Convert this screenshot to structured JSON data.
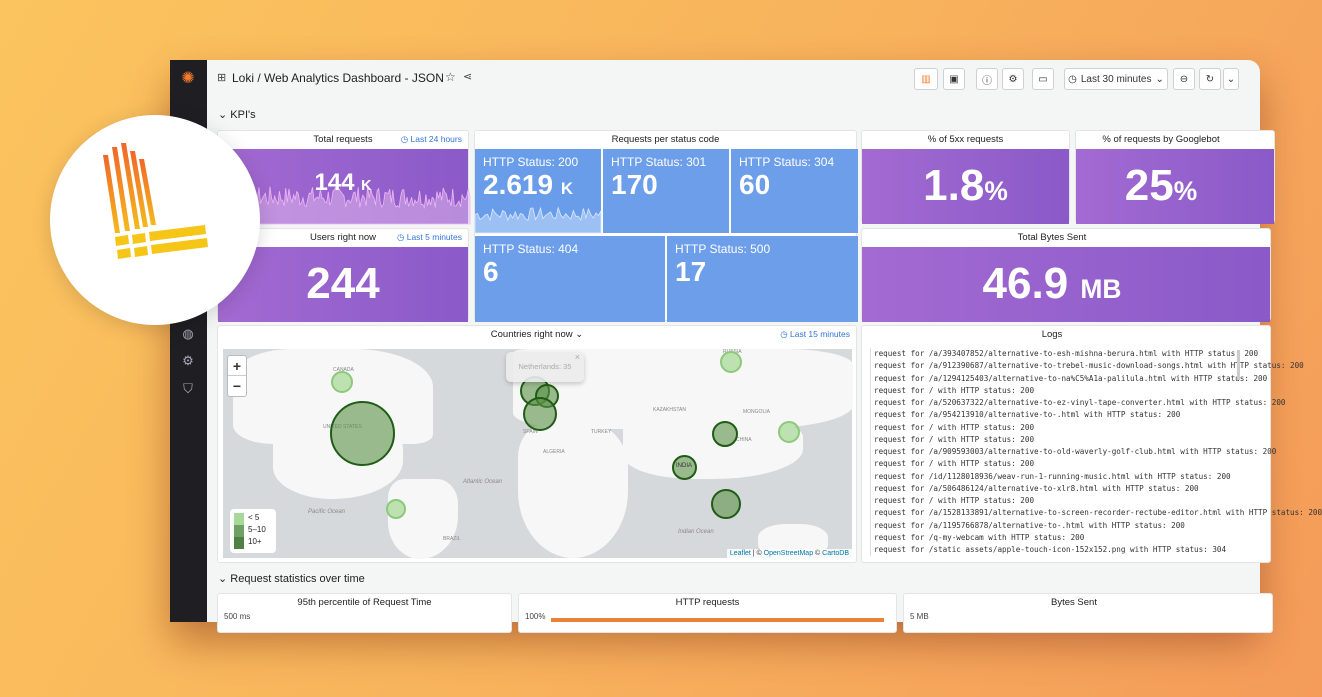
{
  "header": {
    "title": "Loki / Web Analytics Dashboard - JSON",
    "time_range": "Last 30 minutes"
  },
  "sections": {
    "kpi": "KPI's",
    "stats": "Request statistics over time"
  },
  "total_requests": {
    "title": "Total requests",
    "range": "Last 24 hours",
    "value": "144",
    "unit": "K"
  },
  "users": {
    "title": "Users right now",
    "range": "Last 5 minutes",
    "value": "244"
  },
  "status": {
    "title": "Requests per status code",
    "tiles": [
      {
        "label": "HTTP Status: 200",
        "value": "2.619",
        "unit": "K"
      },
      {
        "label": "HTTP Status: 301",
        "value": "170",
        "unit": ""
      },
      {
        "label": "HTTP Status: 304",
        "value": "60",
        "unit": ""
      },
      {
        "label": "HTTP Status: 404",
        "value": "6",
        "unit": ""
      },
      {
        "label": "HTTP Status: 500",
        "value": "17",
        "unit": ""
      }
    ]
  },
  "pct5xx": {
    "title": "% of 5xx requests",
    "value": "1.8",
    "unit": "%"
  },
  "googlebot": {
    "title": "% of requests by Googlebot",
    "value": "25",
    "unit": "%"
  },
  "bytes": {
    "title": "Total Bytes Sent",
    "value": "46.9",
    "unit": "MB"
  },
  "map": {
    "title": "Countries right now",
    "range": "Last 15 minutes",
    "tooltip": "Netherlands: 35",
    "zoom_in": "+",
    "zoom_out": "−",
    "legend": [
      "< 5",
      "5–10",
      "10+"
    ],
    "attribution": {
      "leaflet": "Leaflet",
      "sep": " | © ",
      "osm": "OpenStreetMap",
      "sep2": " © ",
      "carto": "CartoDB"
    },
    "labels": [
      "CANADA",
      "UNITED STATES",
      "RUSSIA",
      "CHINA",
      "INDIA",
      "BRAZIL",
      "Atlantic Ocean",
      "Pacific Ocean",
      "Indian Ocean",
      "MONGOLIA",
      "KAZAKHSTAN",
      "ALGERIA",
      "SPAIN",
      "TURKEY"
    ]
  },
  "logs": {
    "title": "Logs",
    "lines": [
      "request for /a/393407852/alternative-to-esh-mishna-berura.html with HTTP status: 200",
      "request for /a/912390687/alternative-to-trebel-music-download-songs.html with HTTP status: 200",
      "request for /a/1294125403/alternative-to-na%C5%A1a-palilula.html with HTTP status: 200",
      "request for / with HTTP status: 200",
      "request for /a/520637322/alternative-to-ez-vinyl-tape-converter.html with HTTP status: 200",
      "request for /a/954213910/alternative-to-.html with HTTP status: 200",
      "request for / with HTTP status: 200",
      "request for / with HTTP status: 200",
      "request for /a/909593003/alternative-to-old-waverly-golf-club.html with HTTP status: 200",
      "request for / with HTTP status: 200",
      "request for /id/1128018936/weav-run-1-running-music.html with HTTP status: 200",
      "request for /a/506486124/alternative-to-xlr8.html with HTTP status: 200",
      "request for / with HTTP status: 200",
      "request for /a/1528133891/alternative-to-screen-recorder-rectube-editor.html with HTTP status: 200",
      "request for /a/1195766878/alternative-to-.html with HTTP status: 200",
      "request for /q-my-webcam with HTTP status: 200",
      "request for /static assets/apple-touch-icon-152x152.png with HTTP status: 304"
    ]
  },
  "bottom": [
    {
      "title": "95th percentile of Request Time",
      "axis": "500 ms"
    },
    {
      "title": "HTTP requests",
      "axis": "100%"
    },
    {
      "title": "Bytes Sent",
      "axis": "5 MB"
    }
  ],
  "colors": {
    "purple": "#9a63cf",
    "blue": "#6c9eea",
    "bubble": "#1f5c15",
    "loki_orange": "#f0792a",
    "loki_yellow": "#f5c518"
  }
}
